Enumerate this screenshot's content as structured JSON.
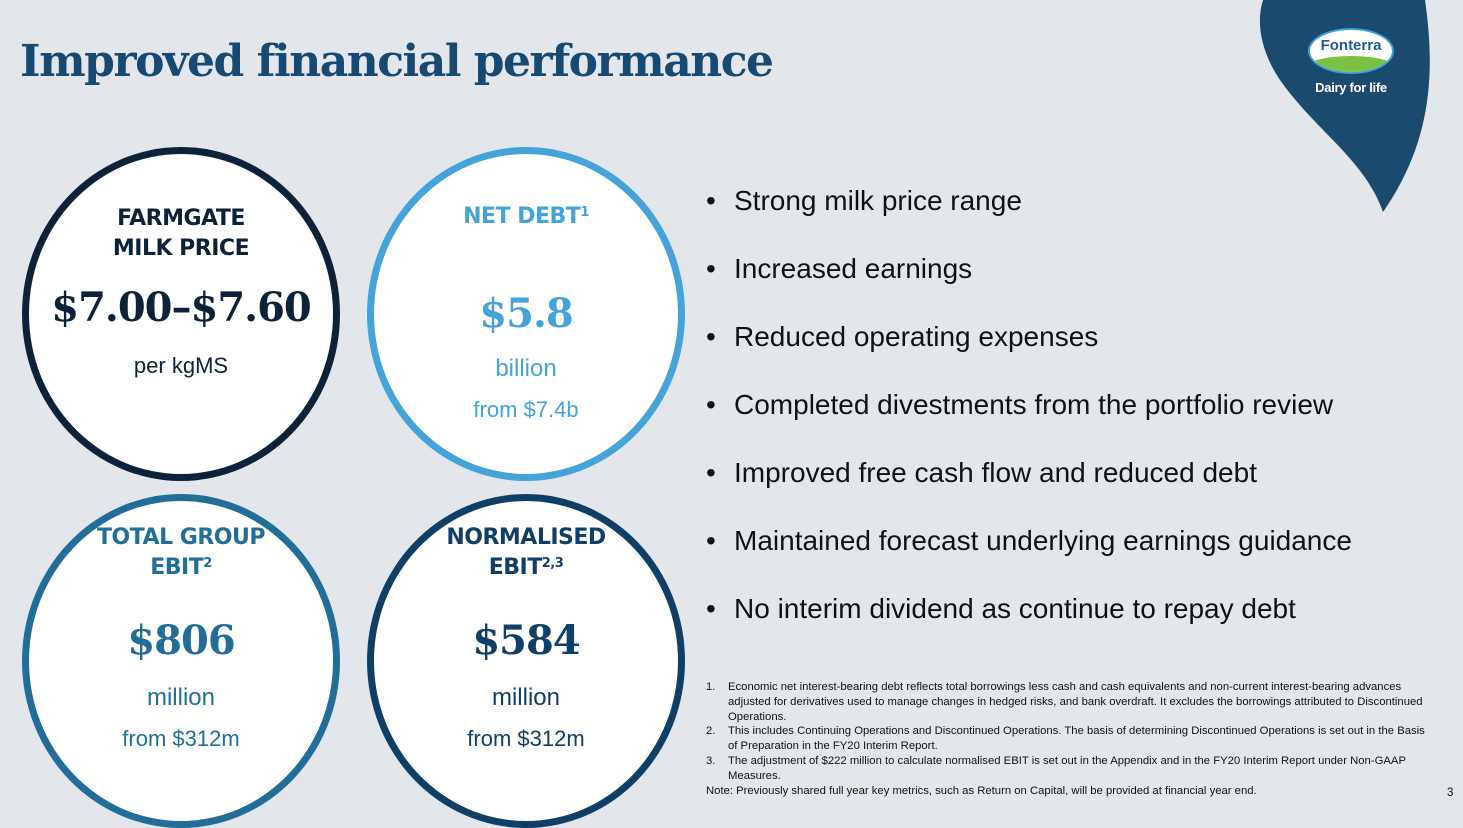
{
  "title": "Improved financial performance",
  "logo": {
    "brand": "Fonterra",
    "tagline": "Dairy for life"
  },
  "colors": {
    "title": "#174a72",
    "drop": "#1a4a6e",
    "c1": "#0d2238",
    "c2": "#44a3d9",
    "c3": "#226e99",
    "c4": "#0f3f66"
  },
  "metrics": [
    {
      "heading_line1": "FARMGATE",
      "heading_line2": "MILK PRICE",
      "value": "$7.00–$7.60",
      "unit": "per kgMS"
    },
    {
      "heading_line1": "NET DEBT",
      "sup": "1",
      "value": "$5.8",
      "unit": "billion",
      "from": "from $7.4b"
    },
    {
      "heading_line1": "TOTAL GROUP",
      "heading_line2": "EBIT",
      "sup": "2",
      "value": "$806",
      "unit": "million",
      "from": "from $312m"
    },
    {
      "heading_line1": "NORMALISED",
      "heading_line2": "EBIT",
      "sup": "2,3",
      "value": "$584",
      "unit": "million",
      "from": "from $312m"
    }
  ],
  "bullet_char": "•",
  "bullets": [
    "Strong milk price range",
    "Increased earnings",
    "Reduced operating expenses",
    "Completed divestments from the portfolio review",
    "Improved free cash flow and reduced debt",
    "Maintained forecast underlying earnings guidance",
    "No interim dividend as continue to repay debt"
  ],
  "footnotes": [
    {
      "n": "1.",
      "text": "Economic net interest-bearing debt reflects total borrowings less cash and cash equivalents and non-current interest-bearing advances adjusted for derivatives used to manage changes in hedged risks, and bank overdraft. It excludes the borrowings attributed to Discontinued Operations."
    },
    {
      "n": "2.",
      "text": "This includes Continuing Operations and Discontinued Operations. The basis of determining Discontinued Operations is set out in the Basis of Preparation in the FY20 Interim Report."
    },
    {
      "n": "3.",
      "text": "The adjustment of $222 million to calculate normalised EBIT is set out in the Appendix and in the FY20 Interim Report under Non-GAAP Measures."
    }
  ],
  "note": "Note: Previously shared full year key metrics, such as Return on Capital, will be provided at financial year end.",
  "page_number": "3"
}
